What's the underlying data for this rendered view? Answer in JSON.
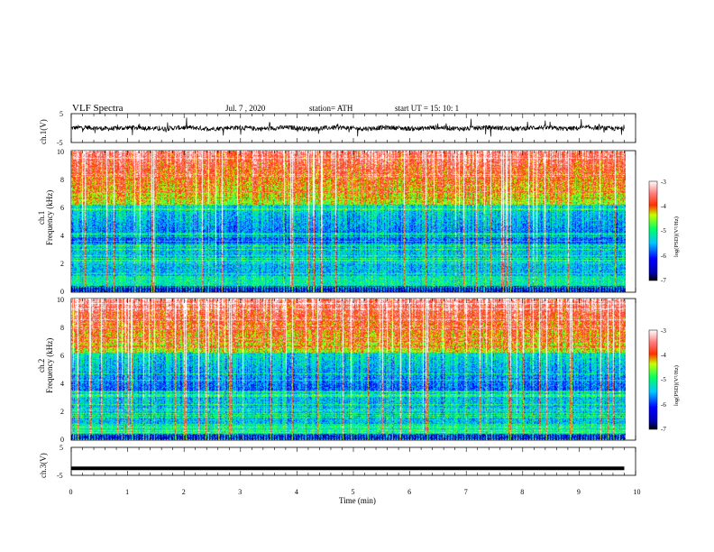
{
  "header": {
    "title": "VLF  Spectra",
    "date": "Jul.  7  , 2020",
    "station": "station= ATH",
    "start": "start  UT  =    15: 10: 1"
  },
  "chart_data": [
    {
      "type": "line",
      "panel": "ch1-waveform",
      "ylabel": "ch.1(V)",
      "ylim": [
        -5,
        5
      ],
      "y_ticks": [
        "5",
        "-5"
      ],
      "xlim": [
        0,
        10
      ],
      "color": "#000000",
      "description_values": "noisy signal centered near 0 V over 0–9.8 min"
    },
    {
      "type": "heatmap",
      "panel": "ch1-spectrogram",
      "ylabel": "ch.1\nFrequency  (kHz)",
      "ylabel_lines": [
        "ch.1",
        "Frequency  (kHz)"
      ],
      "ylim": [
        0,
        10
      ],
      "y_ticks": [
        "10",
        "8",
        "6",
        "4",
        "2",
        "0"
      ],
      "xlim": [
        0,
        10
      ],
      "colorbar": {
        "label": "log(PSD)(V²/Hz)",
        "range": [
          -7,
          -3
        ],
        "ticks": [
          "-3",
          "-4",
          "-5",
          "-6",
          "-7"
        ],
        "colors": [
          "#000000",
          "#0000ff",
          "#00c8ff",
          "#00ff64",
          "#ffff00",
          "#ff0000",
          "#ffffff"
        ]
      }
    },
    {
      "type": "heatmap",
      "panel": "ch2-spectrogram",
      "ylabel": "ch.2\nFrequency  (kHz)",
      "ylabel_lines": [
        "ch.2",
        "Frequency  (kHz)"
      ],
      "ylim": [
        0,
        10
      ],
      "y_ticks": [
        "10",
        "8",
        "6",
        "4",
        "2",
        "0"
      ],
      "xlim": [
        0,
        10
      ],
      "colorbar": {
        "label": "log(PSD)(V²/Hz)",
        "range": [
          -7,
          -3
        ],
        "ticks": [
          "-3",
          "-4",
          "-5",
          "-6",
          "-7"
        ],
        "colors": [
          "#000000",
          "#0000ff",
          "#00c8ff",
          "#00ff64",
          "#ffff00",
          "#ff0000",
          "#ffffff"
        ]
      }
    },
    {
      "type": "line",
      "panel": "ch3-waveform",
      "ylabel": "ch.3(V)",
      "ylim": [
        -5,
        5
      ],
      "y_ticks": [
        "5",
        "-5"
      ],
      "xlim": [
        0,
        10
      ],
      "x_ticks": [
        "0",
        "1",
        "2",
        "3",
        "4",
        "5",
        "6",
        "7",
        "8",
        "9",
        "10"
      ],
      "xlabel": "Time  (min)",
      "color": "#000000",
      "constant_value": -2.5
    }
  ]
}
